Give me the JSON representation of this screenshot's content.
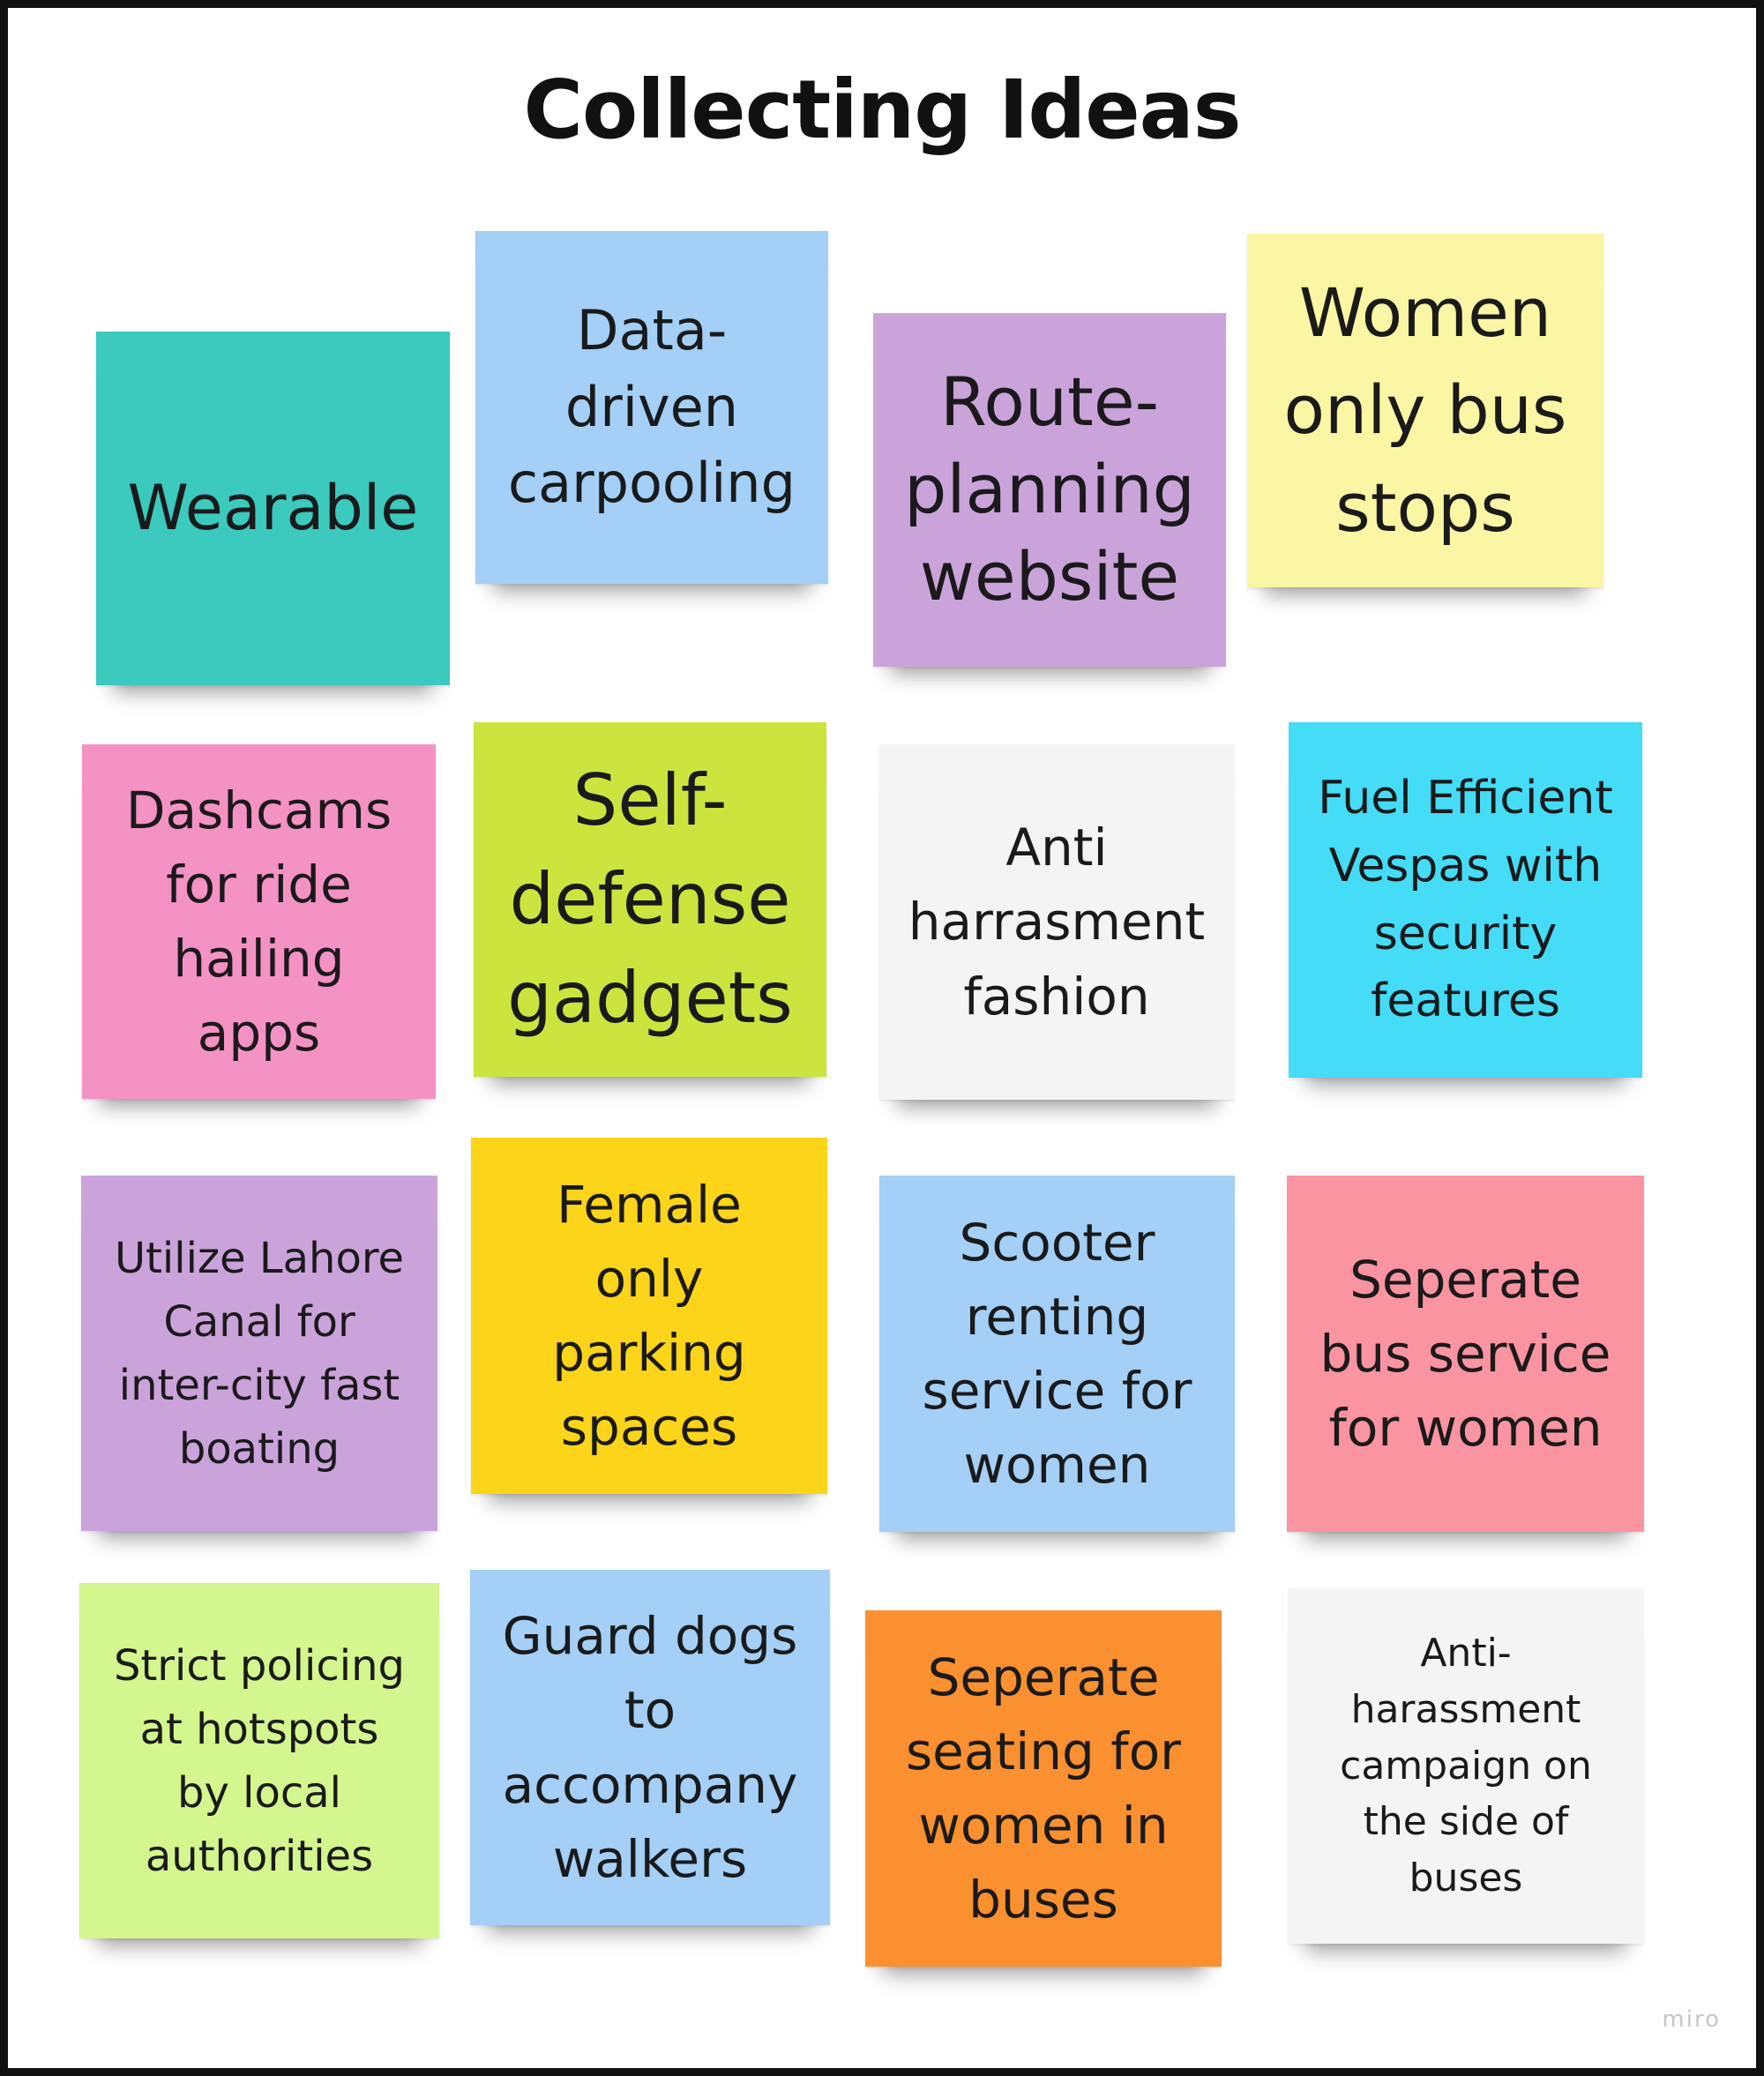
{
  "title": "Collecting Ideas",
  "watermark": "miro",
  "notes": [
    {
      "text": "Wearable",
      "color": "#3cc9be"
    },
    {
      "text": "Data-\ndriven\ncarpooling",
      "color": "#a4cff6"
    },
    {
      "text": "Route-\nplanning\nwebsite",
      "color": "#cba3db"
    },
    {
      "text": "Women\nonly bus\nstops",
      "color": "#fbf6a3"
    },
    {
      "text": "Dashcams\nfor ride\nhailing\napps",
      "color": "#f592c4"
    },
    {
      "text": "Self-\ndefense\ngadgets",
      "color": "#cce43e"
    },
    {
      "text": "Anti\nharrasment\nfashion",
      "color": "#f4f4f4"
    },
    {
      "text": "Fuel Efficient\nVespas with\nsecurity\nfeatures",
      "color": "#45dcf7"
    },
    {
      "text": "Utilize Lahore\nCanal for\ninter-city fast\nboating",
      "color": "#cba3db"
    },
    {
      "text": "Female\nonly\nparking\nspaces",
      "color": "#fcd419"
    },
    {
      "text": "Scooter\nrenting\nservice for\nwomen",
      "color": "#a4cff6"
    },
    {
      "text": "Seperate\nbus service\nfor women",
      "color": "#fa94a1"
    },
    {
      "text": "Strict policing\nat hotspots\nby local\nauthorities",
      "color": "#d3f68e"
    },
    {
      "text": "Guard dogs\nto\naccompany\nwalkers",
      "color": "#a4cff6"
    },
    {
      "text": "Seperate\nseating for\nwomen in\nbuses",
      "color": "#fb9030"
    },
    {
      "text": "Anti-\nharassment\ncampaign on\nthe side of\nbuses",
      "color": "#f4f4f4"
    }
  ]
}
